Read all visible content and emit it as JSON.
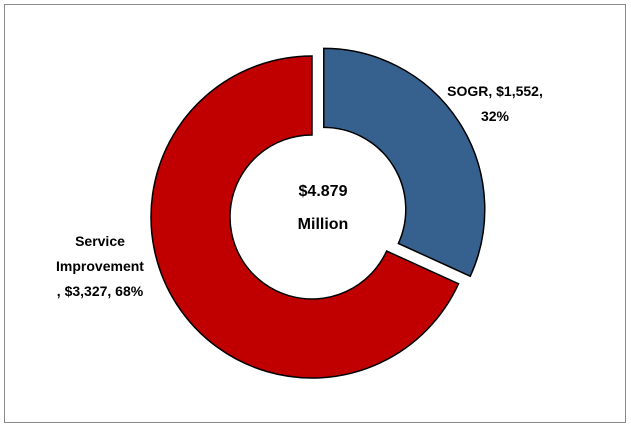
{
  "chart_data": {
    "type": "pie",
    "variant": "donut",
    "center_label": [
      "$4.879",
      "Million"
    ],
    "slices": [
      {
        "name": "SOGR",
        "value": 1552,
        "percent": 32,
        "color": "#36618f",
        "exploded": true,
        "label_lines": [
          "SOGR, $1,552,",
          "32%"
        ]
      },
      {
        "name": "Service Improvement",
        "value": 3327,
        "percent": 68,
        "color": "#c00000",
        "exploded": false,
        "label_lines": [
          "Service",
          "Improvement",
          ", $3,327, 68%"
        ]
      }
    ]
  }
}
